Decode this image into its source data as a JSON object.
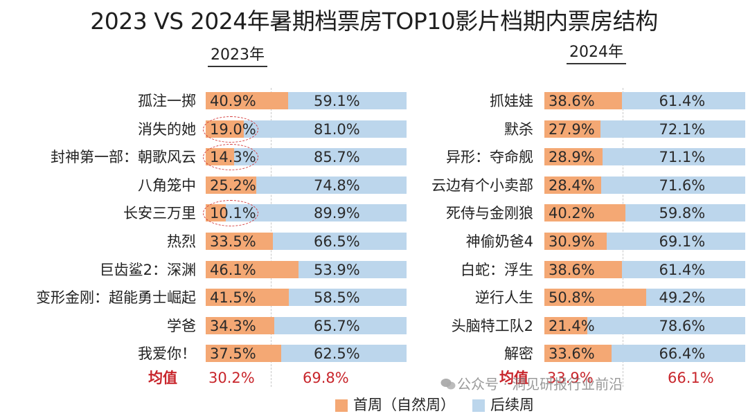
{
  "title": "2023 VS 2024年暑期档票房TOP10影片档期内票房结构",
  "chart_data": [
    {
      "type": "bar",
      "stacked": true,
      "orientation": "horizontal",
      "year_label": "2023年",
      "categories": [
        "孤注一掷",
        "消失的她",
        "封神第一部：朝歌风云",
        "八角笼中",
        "长安三万里",
        "热烈",
        "巨齿鲨2：深渊",
        "变形金刚：超能勇士崛起",
        "学爸",
        "我爱你！"
      ],
      "series": [
        {
          "name": "首周（自然周）",
          "values": [
            40.9,
            19.0,
            14.3,
            25.2,
            10.1,
            33.5,
            46.1,
            41.5,
            34.3,
            37.5
          ],
          "labels": [
            "40.9%",
            "19.0%",
            "14.3%",
            "25.2%",
            "10.1%",
            "33.5%",
            "46.1%",
            "41.5%",
            "34.3%",
            "37.5%"
          ]
        },
        {
          "name": "后续周",
          "values": [
            59.1,
            81.0,
            85.7,
            74.8,
            89.9,
            66.5,
            53.9,
            58.5,
            65.7,
            62.5
          ],
          "labels": [
            "59.1%",
            "81.0%",
            "85.7%",
            "74.8%",
            "89.9%",
            "66.5%",
            "53.9%",
            "58.5%",
            "65.7%",
            "62.5%"
          ]
        }
      ],
      "circled_categories": [
        "消失的她",
        "封神第一部：朝歌风云",
        "长安三万里"
      ],
      "average": {
        "label": "均值",
        "first": "30.2%",
        "rest": "69.8%"
      },
      "xlim": [
        0,
        100
      ]
    },
    {
      "type": "bar",
      "stacked": true,
      "orientation": "horizontal",
      "year_label": "2024年",
      "categories": [
        "抓娃娃",
        "默杀",
        "异形：夺命舰",
        "云边有个小卖部",
        "死侍与金刚狼",
        "神偷奶爸4",
        "白蛇：浮生",
        "逆行人生",
        "头脑特工队2",
        "解密"
      ],
      "series": [
        {
          "name": "首周（自然周）",
          "values": [
            38.6,
            27.9,
            28.9,
            28.4,
            40.2,
            30.9,
            38.6,
            50.8,
            21.4,
            33.6
          ],
          "labels": [
            "38.6%",
            "27.9%",
            "28.9%",
            "28.4%",
            "40.2%",
            "30.9%",
            "38.6%",
            "50.8%",
            "21.4%",
            "33.6%"
          ]
        },
        {
          "name": "后续周",
          "values": [
            61.4,
            72.1,
            71.1,
            71.6,
            59.8,
            69.1,
            61.4,
            49.2,
            78.6,
            66.4
          ],
          "labels": [
            "61.4%",
            "72.1%",
            "71.1%",
            "71.6%",
            "59.8%",
            "69.1%",
            "61.4%",
            "49.2%",
            "78.6%",
            "66.4%"
          ]
        }
      ],
      "average": {
        "label": "均值",
        "first": "33.9%",
        "rest": "66.1%"
      },
      "xlim": [
        0,
        100
      ]
    }
  ],
  "legend": {
    "first_label": "首周（自然周）",
    "rest_label": "后续周"
  },
  "colors": {
    "first": "#f4a874",
    "rest": "#bcd6ec",
    "average": "#c8262c"
  },
  "watermark": "公众号 · 洞见研报行业前沿"
}
